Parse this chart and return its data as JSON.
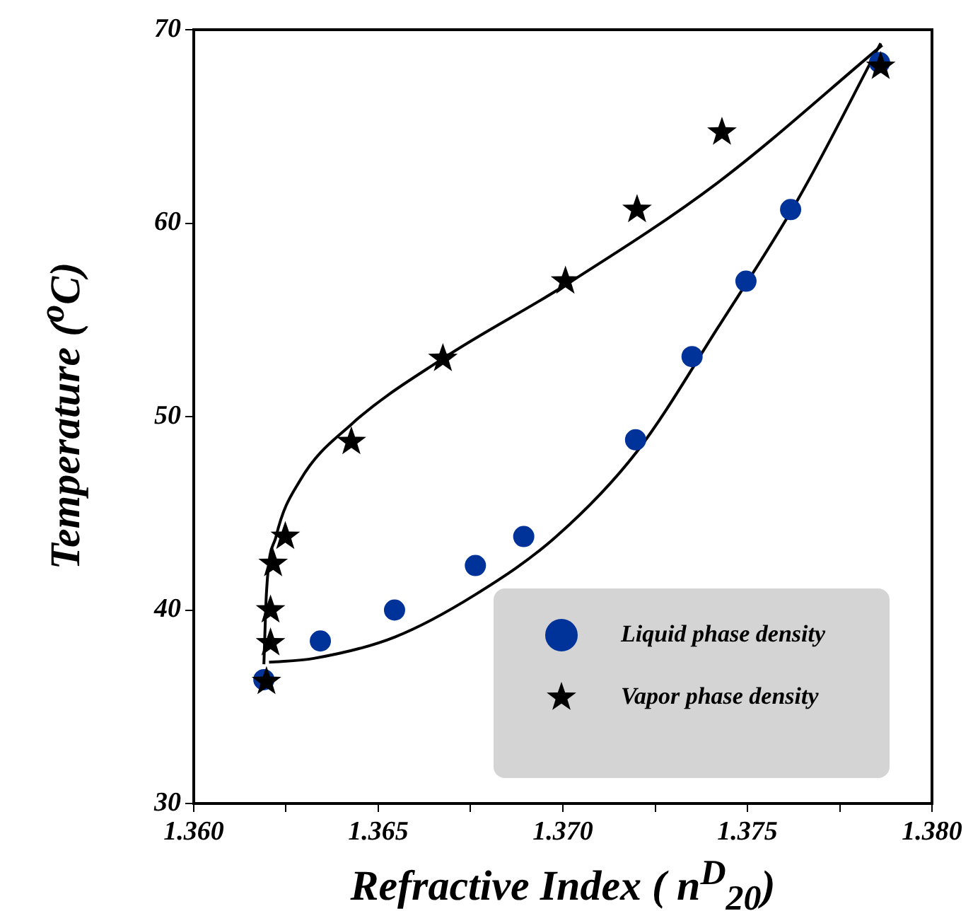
{
  "chart_data": {
    "type": "scatter",
    "xlabel": "Refractive Index ( n$^{D}$$_{20}$)",
    "ylabel": "Temperature ($^{o}$C)",
    "xlim": [
      1.36,
      1.38
    ],
    "xticks": [
      {
        "value": 1.36,
        "label": "1.360"
      },
      {
        "value": 1.3625,
        "label": null
      },
      1.365,
      {
        "value": 1.3675,
        "label": null
      },
      {
        "value": 1.37,
        "label": "1.370"
      },
      {
        "value": 1.3725,
        "label": null
      },
      1.375,
      {
        "value": 1.3775,
        "label": null
      },
      {
        "value": 1.38,
        "label": "1.380"
      }
    ],
    "ylim": [
      30,
      70
    ],
    "yticks": [
      30,
      40,
      50,
      60,
      70
    ],
    "grid": false,
    "legend": "bottom right",
    "series": [
      {
        "name": "Liquid phase density",
        "color": "#003399",
        "marker": "circle",
        "x": [
          1.3619,
          1.36343,
          1.36544,
          1.36763,
          1.36894,
          1.37197,
          1.3735,
          1.37496,
          1.37617,
          1.37858
        ],
        "values": [
          36.4,
          38.4,
          40.0,
          42.3,
          43.8,
          48.8,
          53.1,
          57.0,
          60.7,
          68.3
        ]
      },
      {
        "name": "Vapor phase density",
        "color": "#000000",
        "marker": "star",
        "x": [
          1.36197,
          1.36208,
          1.36208,
          1.36215,
          1.36248,
          1.36427,
          1.36675,
          1.37007,
          1.37201,
          1.37431,
          1.37861
        ],
        "values": [
          36.3,
          38.3,
          40.0,
          42.4,
          43.8,
          48.7,
          53.0,
          57.0,
          60.7,
          64.7,
          68.1
        ]
      },
      {
        "type": "line",
        "color": "#000000",
        "marker": "none",
        "line_style": "solid",
        "x": [
          1.3619,
          1.36197,
          1.36223,
          1.36288,
          1.36427,
          1.36675,
          1.37007,
          1.3742,
          1.37865
        ],
        "values": [
          37.2,
          40.9,
          43.8,
          46.7,
          49.6,
          53.0,
          56.8,
          62.1,
          69.2
        ]
      },
      {
        "type": "line",
        "color": "#000000",
        "marker": "none",
        "line_style": "solid",
        "x": [
          1.36204,
          1.36325,
          1.36544,
          1.36763,
          1.36982,
          1.37201,
          1.3742,
          1.37639,
          1.37861
        ],
        "values": [
          37.3,
          37.5,
          38.6,
          40.8,
          43.8,
          48.2,
          54.6,
          61.3,
          69.3
        ]
      }
    ]
  }
}
